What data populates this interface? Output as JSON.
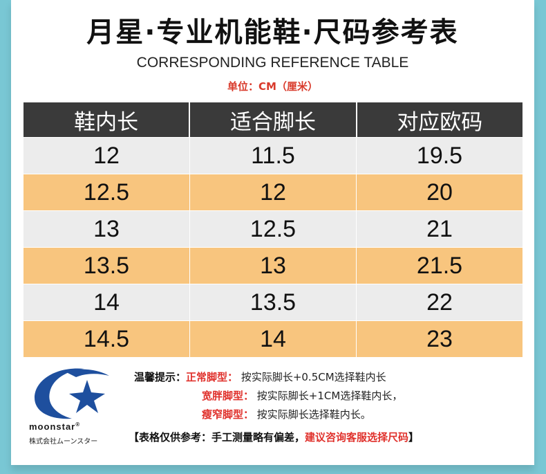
{
  "header": {
    "title": "月星·专业机能鞋·尺码参考表",
    "subtitle": "CORRESPONDING REFERENCE TABLE",
    "unit": "单位：CM（厘米）"
  },
  "table": {
    "columns": [
      "鞋内长",
      "适合脚长",
      "对应欧码"
    ],
    "rows": [
      [
        "12",
        "11.5",
        "19.5"
      ],
      [
        "12.5",
        "12",
        "20"
      ],
      [
        "13",
        "12.5",
        "21"
      ],
      [
        "13.5",
        "13",
        "21.5"
      ],
      [
        "14",
        "13.5",
        "22"
      ],
      [
        "14.5",
        "14",
        "23"
      ]
    ]
  },
  "tips": {
    "label": "温馨提示：",
    "lines": [
      {
        "type": "正常脚型：",
        "text": "按实际脚长+0.5CM选择鞋内长"
      },
      {
        "type": "宽胖脚型：",
        "text": "按实际脚长+1CM选择鞋内长，"
      },
      {
        "type": "瘦窄脚型：",
        "text": "按实际脚长选择鞋内长。"
      }
    ],
    "note_black": "【表格仅供参考：手工测量略有偏差，",
    "note_red": "建议咨询客服选择尺码",
    "note_end": "】"
  },
  "logo": {
    "name": "moonstar",
    "registered": "®",
    "subtext": "株式会社ムーンスター"
  },
  "colors": {
    "background": "#79c7d4",
    "header_row": "#3a3a3a",
    "row_grey": "#ececec",
    "row_orange": "#f8c57e",
    "logo_blue": "#1e4f9e",
    "accent_red": "#e0312c"
  }
}
